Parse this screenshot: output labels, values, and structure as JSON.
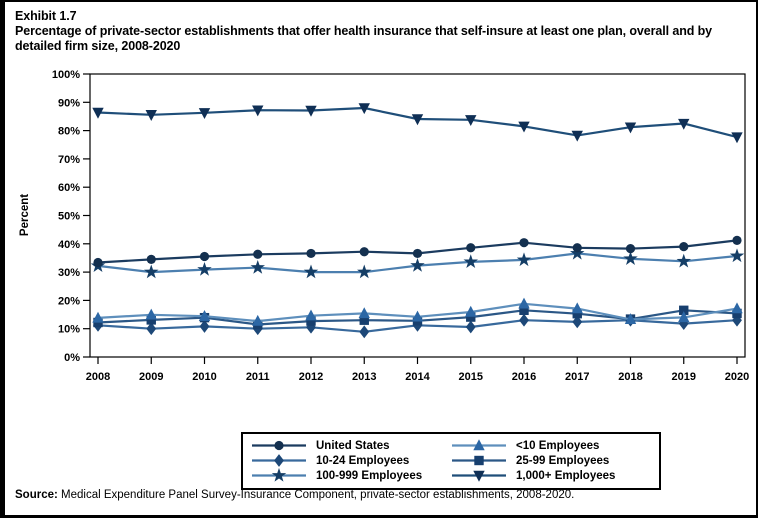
{
  "page": {
    "exhibit_label": "Exhibit 1.7",
    "title": "Percentage of private-sector establishments that offer health insurance that self-insure at least one plan, overall and by detailed firm size, 2008-2020",
    "source_label": "Source:",
    "source_text": " Medical Expenditure Panel Survey-Insurance Component, private-sector establishments, 2008-2020."
  },
  "chart_data": {
    "type": "line",
    "title": "Percentage of private-sector establishments that offer health insurance that self-insure at least one plan, overall and by detailed firm size, 2008-2020",
    "xlabel": "",
    "ylabel": "Percent",
    "ylim": [
      0,
      100
    ],
    "y_tick_step": 10,
    "y_tick_labels": [
      "0%",
      "10%",
      "20%",
      "30%",
      "40%",
      "50%",
      "60%",
      "70%",
      "80%",
      "90%",
      "100%"
    ],
    "grid": false,
    "legend_position": "bottom",
    "x": [
      2008,
      2009,
      2010,
      2011,
      2012,
      2013,
      2014,
      2015,
      2016,
      2017,
      2018,
      2019,
      2020
    ],
    "series": [
      {
        "name": "United States",
        "marker": "circle",
        "line_color": "#1B3B5F",
        "marker_color": "#14304F",
        "values": [
          33.4,
          34.5,
          35.5,
          36.3,
          36.6,
          37.2,
          36.6,
          38.6,
          40.4,
          38.6,
          38.3,
          39.0,
          41.2
        ]
      },
      {
        "name": "10-24 Employees",
        "marker": "diamond",
        "line_color": "#38699C",
        "marker_color": "#1D4878",
        "values": [
          11.2,
          10.0,
          10.8,
          10.0,
          10.5,
          8.9,
          11.2,
          10.6,
          13.0,
          12.4,
          13.0,
          11.8,
          13.0
        ]
      },
      {
        "name": "100-999 Employees",
        "marker": "star",
        "line_color": "#4C7FAF",
        "marker_color": "#153E66",
        "values": [
          32.2,
          30.0,
          30.9,
          31.6,
          30.0,
          30.0,
          32.3,
          33.6,
          34.3,
          36.6,
          34.7,
          33.8,
          35.7
        ]
      },
      {
        "name": "<10 Employees",
        "marker": "triangle-up",
        "line_color": "#5E8FBC",
        "marker_color": "#2C67A5",
        "values": [
          13.8,
          14.9,
          14.4,
          12.7,
          14.6,
          15.4,
          14.2,
          15.9,
          18.8,
          17.1,
          13.3,
          14.0,
          17.1
        ]
      },
      {
        "name": "25-99 Employees",
        "marker": "square",
        "line_color": "#2B5786",
        "marker_color": "#173F6E",
        "values": [
          12.2,
          13.1,
          13.9,
          11.5,
          12.7,
          13.0,
          12.8,
          14.1,
          16.5,
          15.3,
          13.4,
          16.5,
          15.4
        ]
      },
      {
        "name": "1,000+ Employees",
        "marker": "triangle-down",
        "line_color": "#1F4E79",
        "marker_color": "#0F2F55",
        "values": [
          86.4,
          85.6,
          86.3,
          87.2,
          87.1,
          88.0,
          84.1,
          83.8,
          81.5,
          78.3,
          81.2,
          82.5,
          77.7
        ]
      }
    ],
    "legend_rows": [
      [
        "United States",
        "<10 Employees"
      ],
      [
        "10-24 Employees",
        "25-99 Employees"
      ],
      [
        "100-999 Employees",
        "1,000+ Employees"
      ]
    ]
  }
}
